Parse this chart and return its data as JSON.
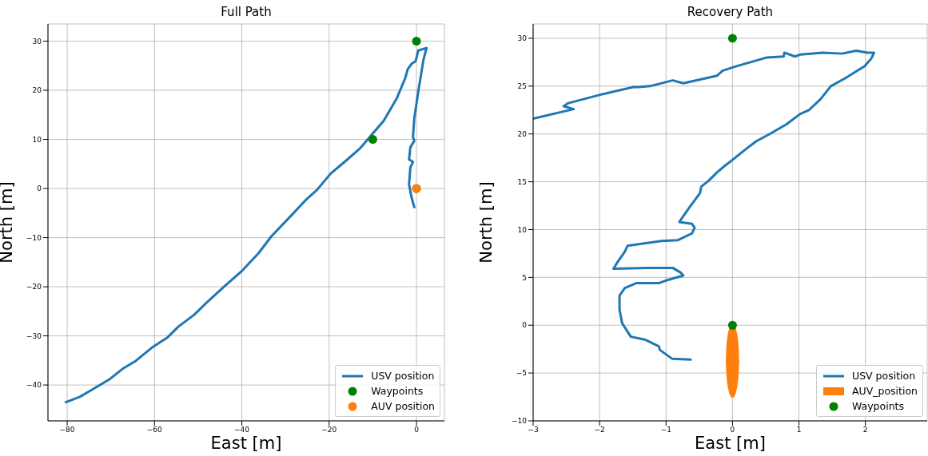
{
  "chart_data": [
    {
      "type": "line",
      "title": "Full Path",
      "xlabel": "East [m]",
      "ylabel": "North [m]",
      "xlim": [
        -84.4,
        6.4
      ],
      "ylim": [
        -47.3,
        33.5
      ],
      "xticks": [
        {
          "value": -80,
          "label": "−80"
        },
        {
          "value": -60,
          "label": "−60"
        },
        {
          "value": -40,
          "label": "−40"
        },
        {
          "value": -20,
          "label": "−20"
        },
        0
      ],
      "yticks": [
        {
          "value": -40,
          "label": "−40"
        },
        {
          "value": -30,
          "label": "−30"
        },
        {
          "value": -20,
          "label": "−20"
        },
        {
          "value": -10,
          "label": "−10"
        },
        0,
        10,
        20,
        30
      ],
      "grid": true,
      "legend": "bottom right",
      "series": [
        {
          "name": "USV position",
          "color": "#1f77b4",
          "x": [
            -80.3,
            -77.1,
            -74.0,
            -70.4,
            -67.3,
            -64.3,
            -60.6,
            -57.0,
            -54.5,
            -50.9,
            -47.8,
            -44.1,
            -39.9,
            -36.2,
            -33.2,
            -28.9,
            -25.2,
            -22.8,
            -19.7,
            -16.1,
            -13.0,
            -9.9,
            -7.5,
            -4.5,
            -2.6,
            -2.0,
            -1.1,
            -0.2,
            0.4,
            2.3,
            1.6,
            0.4,
            -0.5,
            -0.8,
            -0.5,
            -1.4,
            -1.7,
            -0.8,
            -1.4,
            -1.7,
            -1.1,
            -0.5
          ],
          "values": [
            -43.5,
            -42.4,
            -40.8,
            -38.9,
            -36.7,
            -35.1,
            -32.4,
            -30.3,
            -28.1,
            -25.7,
            -23.0,
            -20.0,
            -16.7,
            -13.2,
            -9.7,
            -5.7,
            -2.2,
            -0.3,
            3.0,
            5.7,
            8.1,
            11.3,
            13.8,
            18.4,
            22.4,
            24.3,
            25.4,
            25.9,
            28.1,
            28.6,
            26.2,
            19.7,
            14.3,
            10.5,
            9.7,
            8.4,
            5.9,
            5.4,
            4.3,
            0.8,
            -1.9,
            -3.8
          ]
        },
        {
          "name": "Waypoints",
          "type": "scatter",
          "marker": "circle",
          "color": "#008000",
          "x": [
            0,
            -10,
            0
          ],
          "values": [
            30,
            10,
            0
          ]
        },
        {
          "name": "AUV position",
          "type": "scatter",
          "marker": "circle",
          "color": "#ff7f0e",
          "x": [
            0
          ],
          "values": [
            0
          ]
        }
      ]
    },
    {
      "type": "line",
      "title": "Recovery Path",
      "xlabel": "East [m]",
      "ylabel": "North [m]",
      "xlim": [
        -3,
        2.93
      ],
      "ylim": [
        -10,
        31.5
      ],
      "xticks": [
        {
          "value": -3,
          "label": "−3"
        },
        {
          "value": -2,
          "label": "−2"
        },
        {
          "value": -1,
          "label": "−1"
        },
        0,
        1,
        2
      ],
      "yticks": [
        {
          "value": -10,
          "label": "−10"
        },
        {
          "value": -5,
          "label": "−5"
        },
        0,
        5,
        10,
        15,
        20,
        25,
        30
      ],
      "grid": true,
      "legend": "bottom right",
      "series": [
        {
          "name": "USV position",
          "color": "#1f77b4",
          "x": [
            -3.0,
            -2.39,
            -2.54,
            -2.48,
            -1.99,
            -1.49,
            -1.41,
            -1.24,
            -0.9,
            -0.74,
            -0.23,
            -0.15,
            0.02,
            0.52,
            0.77,
            0.78,
            0.94,
            1.02,
            1.36,
            1.65,
            1.86,
            2.03,
            2.13,
            2.09,
            1.99,
            1.69,
            1.48,
            1.32,
            1.15,
            1.02,
            0.81,
            0.56,
            0.35,
            0.18,
            0.02,
            -0.11,
            -0.23,
            -0.36,
            -0.47,
            -0.49,
            -0.65,
            -0.8,
            -0.61,
            -0.57,
            -0.61,
            -0.82,
            -1.07,
            -1.58,
            -1.62,
            -1.74,
            -1.79,
            -1.28,
            -0.9,
            -0.78,
            -0.74,
            -0.99,
            -1.11,
            -1.45,
            -1.62,
            -1.7,
            -1.7,
            -1.66,
            -1.53,
            -1.32,
            -1.11,
            -1.09,
            -0.91,
            -0.63
          ],
          "values": [
            21.6,
            22.6,
            22.9,
            23.2,
            24.1,
            24.9,
            24.9,
            25.0,
            25.6,
            25.3,
            26.1,
            26.6,
            27.0,
            28.0,
            28.1,
            28.5,
            28.1,
            28.3,
            28.5,
            28.4,
            28.7,
            28.5,
            28.5,
            27.9,
            27.1,
            25.8,
            25.0,
            23.6,
            22.5,
            22.1,
            21.0,
            20.0,
            19.2,
            18.3,
            17.4,
            16.7,
            16.0,
            15.1,
            14.5,
            13.8,
            12.3,
            10.8,
            10.6,
            10.2,
            9.6,
            8.9,
            8.8,
            8.3,
            7.7,
            6.5,
            5.9,
            6.0,
            6.0,
            5.5,
            5.2,
            4.7,
            4.4,
            4.4,
            3.9,
            3.1,
            1.6,
            0.2,
            -1.2,
            -1.5,
            -2.2,
            -2.6,
            -3.5,
            -3.6
          ]
        },
        {
          "name": "AUV_position",
          "color": "#ff7f0e",
          "x": [
            -0.1,
            -0.095,
            -0.085,
            -0.07,
            -0.05,
            -0.025,
            0,
            0.025,
            0.05,
            0.07,
            0.085,
            0.095,
            0.1
          ],
          "values": [
            -3.7,
            -3.7,
            -3.7,
            -3.7,
            -3.7,
            -3.7,
            -3.7,
            -3.7,
            -3.7,
            -3.7,
            -3.7,
            -3.7,
            -3.7
          ],
          "lower": [
            -3.7,
            -4.9,
            -5.8,
            -6.5,
            -7.1,
            -7.5,
            -7.6,
            -7.5,
            -7.1,
            -6.5,
            -5.8,
            -4.9,
            -3.7
          ],
          "upper": [
            -3.7,
            -2.5,
            -1.6,
            -0.9,
            -0.3,
            0.1,
            0.2,
            0.1,
            -0.3,
            -0.9,
            -1.6,
            -2.5,
            -3.7
          ]
        },
        {
          "name": "Waypoints",
          "type": "scatter",
          "marker": "circle",
          "color": "#008000",
          "x": [
            0,
            0
          ],
          "values": [
            30,
            0
          ]
        }
      ]
    }
  ]
}
